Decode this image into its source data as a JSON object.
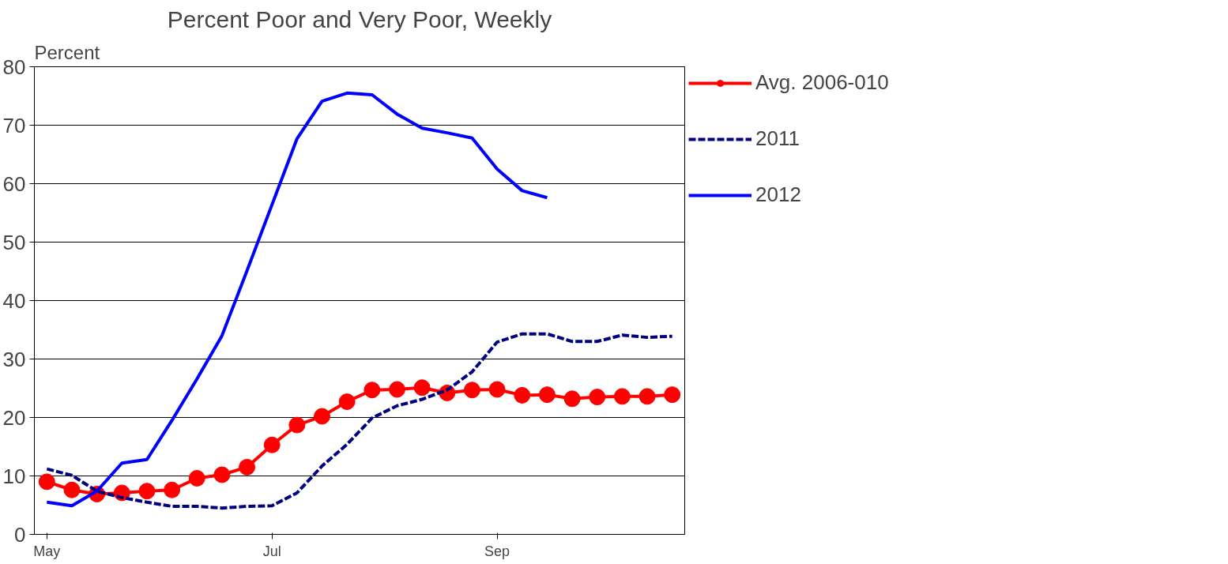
{
  "chart_data": {
    "type": "line",
    "title": "Percent Poor and Very Poor, Weekly",
    "ylabel": "Percent",
    "categories": [
      "May",
      null,
      null,
      null,
      null,
      null,
      null,
      null,
      null,
      "Jul",
      null,
      null,
      null,
      null,
      null,
      null,
      null,
      null,
      "Sep",
      null,
      null,
      null,
      null,
      null,
      null,
      null
    ],
    "series": [
      {
        "name": "Avg. 2006-010",
        "color": "#ff0000",
        "marker": "circle",
        "line_style": "solid",
        "values": [
          9.0,
          7.6,
          6.9,
          7.1,
          7.4,
          7.6,
          9.6,
          10.2,
          11.5,
          15.3,
          18.7,
          20.2,
          22.7,
          24.7,
          24.8,
          25.1,
          24.2,
          24.7,
          24.8,
          23.8,
          23.9,
          23.2,
          23.5,
          23.6,
          23.6,
          23.9
        ]
      },
      {
        "name": "2011",
        "color": "#000080",
        "marker": "none",
        "line_style": "dashed",
        "values": [
          11.2,
          10.1,
          7.4,
          6.3,
          5.5,
          4.8,
          4.8,
          4.5,
          4.8,
          4.9,
          7.1,
          11.7,
          15.4,
          19.9,
          22.0,
          23.1,
          24.7,
          27.8,
          32.9,
          34.3,
          34.3,
          33.0,
          33.0,
          34.1,
          33.7,
          33.9
        ]
      },
      {
        "name": "2012",
        "color": "#0000ff",
        "marker": "none",
        "line_style": "solid",
        "values": [
          5.5,
          4.9,
          7.4,
          12.2,
          12.8,
          19.5,
          26.6,
          34.0,
          45.1,
          56.4,
          67.7,
          74.1,
          75.5,
          75.2,
          71.9,
          69.5,
          68.7,
          67.8,
          62.5,
          58.8,
          57.6,
          null,
          null,
          null,
          null,
          null
        ]
      }
    ],
    "ylim": [
      0,
      80
    ],
    "yticks": [
      0,
      10,
      20,
      30,
      40,
      50,
      60,
      70,
      80
    ],
    "grid": "y",
    "legend": "right"
  }
}
